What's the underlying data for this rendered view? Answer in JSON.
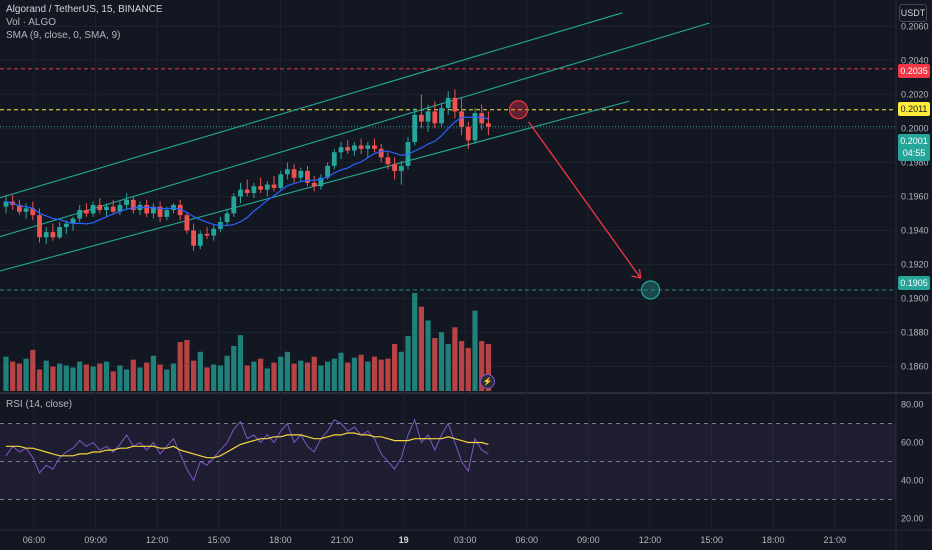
{
  "header": {
    "symbol_line": "Algorand / TetherUS, 15, BINANCE",
    "volume_line": "Vol · ALGO",
    "sma_line": "SMA (9, close, 0, SMA, 9)",
    "rsi_line": "RSI (14, close)",
    "currency": "USDT"
  },
  "price_tags": {
    "target_high": "0.2035",
    "target_high_color": "#f23645",
    "entry": "0.2011",
    "entry_color": "#ffeb3b",
    "last": "0.2001",
    "last_color": "#26a69a",
    "countdown": "04:55",
    "target_low": "0.1905",
    "target_low_color": "#26a69a"
  },
  "chart_data": {
    "type": "candlestick",
    "symbol": "ALGO/USDT",
    "interval": "15",
    "exchange": "BINANCE",
    "x_axis_labels": [
      "06:00",
      "09:00",
      "12:00",
      "15:00",
      "18:00",
      "21:00",
      "19",
      "03:00",
      "06:00",
      "09:00",
      "12:00",
      "15:00",
      "18:00",
      "21:00"
    ],
    "price_ticks": [
      "0.2060",
      "0.2040",
      "0.2020",
      "0.2000",
      "0.1980",
      "0.1960",
      "0.1940",
      "0.1920",
      "0.1900",
      "0.1880",
      "0.1860"
    ],
    "ylim": [
      0.1845,
      0.2072
    ],
    "rsi_ticks": [
      "80.00",
      "60.00",
      "40.00",
      "20.00"
    ],
    "rsi_ylim": [
      15,
      85
    ],
    "rsi_bands": [
      30,
      50,
      70
    ],
    "horizontal_levels": [
      0.2035,
      0.2011,
      0.2001,
      0.1905
    ],
    "colors": {
      "up": "#26a69a",
      "down": "#ef5350",
      "sma": "#2962ff",
      "rsi": "#7e57c2",
      "rsi_ma": "#f5d63d",
      "channel": "#22ab94",
      "arrow": "#f23645"
    },
    "candles": [
      [
        0.1954,
        0.196,
        0.195,
        0.1957
      ],
      [
        0.1957,
        0.1961,
        0.1952,
        0.1955
      ],
      [
        0.1955,
        0.1958,
        0.1949,
        0.1951
      ],
      [
        0.1951,
        0.1956,
        0.1947,
        0.1953
      ],
      [
        0.1953,
        0.1957,
        0.1946,
        0.1949
      ],
      [
        0.1949,
        0.1953,
        0.1933,
        0.1936
      ],
      [
        0.1936,
        0.1942,
        0.1932,
        0.1939
      ],
      [
        0.1939,
        0.1944,
        0.1934,
        0.1936
      ],
      [
        0.1936,
        0.1945,
        0.1935,
        0.1942
      ],
      [
        0.1942,
        0.1946,
        0.1938,
        0.1944
      ],
      [
        0.1944,
        0.1948,
        0.194,
        0.1947
      ],
      [
        0.1947,
        0.1955,
        0.1945,
        0.1952
      ],
      [
        0.1952,
        0.1956,
        0.1948,
        0.195
      ],
      [
        0.195,
        0.1957,
        0.1948,
        0.1955
      ],
      [
        0.1955,
        0.1959,
        0.195,
        0.1952
      ],
      [
        0.1952,
        0.1956,
        0.1948,
        0.1954
      ],
      [
        0.1954,
        0.1958,
        0.195,
        0.1951
      ],
      [
        0.1951,
        0.1957,
        0.1949,
        0.1955
      ],
      [
        0.1955,
        0.1962,
        0.1952,
        0.1958
      ],
      [
        0.1958,
        0.196,
        0.195,
        0.1952
      ],
      [
        0.1952,
        0.1957,
        0.1949,
        0.1955
      ],
      [
        0.1955,
        0.1958,
        0.1948,
        0.195
      ],
      [
        0.195,
        0.1956,
        0.1947,
        0.1954
      ],
      [
        0.1954,
        0.1957,
        0.1945,
        0.1948
      ],
      [
        0.1948,
        0.1954,
        0.1946,
        0.1952
      ],
      [
        0.1952,
        0.1956,
        0.195,
        0.1955
      ],
      [
        0.1955,
        0.1958,
        0.1946,
        0.1949
      ],
      [
        0.1949,
        0.1951,
        0.1938,
        0.194
      ],
      [
        0.194,
        0.1944,
        0.1928,
        0.1931
      ],
      [
        0.1931,
        0.194,
        0.1929,
        0.1938
      ],
      [
        0.1938,
        0.1942,
        0.1935,
        0.1937
      ],
      [
        0.1937,
        0.1943,
        0.1934,
        0.1941
      ],
      [
        0.1941,
        0.1948,
        0.1939,
        0.1945
      ],
      [
        0.1945,
        0.1952,
        0.1943,
        0.195
      ],
      [
        0.195,
        0.1962,
        0.1948,
        0.196
      ],
      [
        0.196,
        0.1968,
        0.1956,
        0.1964
      ],
      [
        0.1964,
        0.197,
        0.196,
        0.1962
      ],
      [
        0.1962,
        0.1968,
        0.1959,
        0.1966
      ],
      [
        0.1966,
        0.1971,
        0.1962,
        0.1964
      ],
      [
        0.1964,
        0.1969,
        0.196,
        0.1967
      ],
      [
        0.1967,
        0.1972,
        0.1963,
        0.1965
      ],
      [
        0.1965,
        0.1975,
        0.1964,
        0.1973
      ],
      [
        0.1973,
        0.198,
        0.197,
        0.1976
      ],
      [
        0.1976,
        0.1979,
        0.1968,
        0.1971
      ],
      [
        0.1971,
        0.1977,
        0.1969,
        0.1975
      ],
      [
        0.1975,
        0.1978,
        0.1966,
        0.1968
      ],
      [
        0.1968,
        0.1972,
        0.1963,
        0.1966
      ],
      [
        0.1966,
        0.1973,
        0.1964,
        0.1971
      ],
      [
        0.1971,
        0.198,
        0.197,
        0.1978
      ],
      [
        0.1978,
        0.1988,
        0.1976,
        0.1986
      ],
      [
        0.1986,
        0.1992,
        0.1982,
        0.1989
      ],
      [
        0.1989,
        0.1993,
        0.1985,
        0.1987
      ],
      [
        0.1987,
        0.1992,
        0.1984,
        0.199
      ],
      [
        0.199,
        0.1994,
        0.1985,
        0.1988
      ],
      [
        0.1988,
        0.1992,
        0.1983,
        0.199
      ],
      [
        0.199,
        0.1994,
        0.1986,
        0.1988
      ],
      [
        0.1988,
        0.1991,
        0.198,
        0.1983
      ],
      [
        0.1983,
        0.1986,
        0.1976,
        0.1979
      ],
      [
        0.1979,
        0.1983,
        0.197,
        0.1975
      ],
      [
        0.1975,
        0.1981,
        0.1967,
        0.1978
      ],
      [
        0.1978,
        0.1995,
        0.1976,
        0.1992
      ],
      [
        0.1992,
        0.2012,
        0.199,
        0.2008
      ],
      [
        0.2008,
        0.202,
        0.2,
        0.2004
      ],
      [
        0.2004,
        0.2014,
        0.1998,
        0.201
      ],
      [
        0.201,
        0.2016,
        0.2,
        0.2003
      ],
      [
        0.2003,
        0.2015,
        0.2001,
        0.2012
      ],
      [
        0.2012,
        0.2022,
        0.2008,
        0.2018
      ],
      [
        0.2018,
        0.2023,
        0.2006,
        0.201
      ],
      [
        0.201,
        0.2018,
        0.1996,
        0.2001
      ],
      [
        0.2001,
        0.2004,
        0.1988,
        0.1993
      ],
      [
        0.1993,
        0.2012,
        0.1991,
        0.2009
      ],
      [
        0.2009,
        0.2014,
        0.1999,
        0.2003
      ],
      [
        0.2003,
        0.201,
        0.1996,
        0.2001
      ]
    ],
    "volumes": [
      0.35,
      0.3,
      0.28,
      0.33,
      0.42,
      0.22,
      0.31,
      0.25,
      0.28,
      0.26,
      0.24,
      0.3,
      0.27,
      0.25,
      0.28,
      0.3,
      0.2,
      0.26,
      0.22,
      0.32,
      0.24,
      0.29,
      0.36,
      0.27,
      0.22,
      0.28,
      0.5,
      0.52,
      0.31,
      0.4,
      0.24,
      0.27,
      0.26,
      0.36,
      0.46,
      0.57,
      0.26,
      0.3,
      0.33,
      0.23,
      0.29,
      0.35,
      0.4,
      0.28,
      0.31,
      0.29,
      0.35,
      0.26,
      0.3,
      0.33,
      0.39,
      0.29,
      0.34,
      0.37,
      0.3,
      0.35,
      0.32,
      0.33,
      0.48,
      0.4,
      0.56,
      1.0,
      0.86,
      0.72,
      0.54,
      0.6,
      0.48,
      0.65,
      0.51,
      0.44,
      0.82,
      0.51,
      0.48
    ],
    "rsi": [
      53,
      58,
      55,
      57,
      52,
      44,
      48,
      46,
      52,
      55,
      57,
      61,
      58,
      60,
      56,
      58,
      55,
      59,
      64,
      58,
      60,
      56,
      60,
      54,
      58,
      62,
      54,
      46,
      40,
      50,
      48,
      52,
      56,
      60,
      67,
      71,
      62,
      64,
      60,
      64,
      60,
      66,
      70,
      60,
      64,
      58,
      55,
      62,
      66,
      72,
      70,
      66,
      68,
      64,
      66,
      62,
      54,
      50,
      46,
      52,
      64,
      72,
      60,
      64,
      56,
      64,
      70,
      60,
      50,
      45,
      62,
      56,
      54
    ],
    "rsi_ma": [
      58,
      58,
      58,
      57,
      57,
      56,
      55,
      54,
      53,
      53,
      53,
      54,
      54,
      55,
      55,
      56,
      56,
      57,
      57,
      58,
      58,
      58,
      58,
      57,
      57,
      58,
      56,
      55,
      54,
      53,
      52,
      52,
      53,
      55,
      57,
      59,
      60,
      61,
      62,
      62,
      63,
      63,
      64,
      64,
      64,
      63,
      62,
      62,
      63,
      64,
      64,
      65,
      65,
      64,
      64,
      63,
      63,
      62,
      61,
      61,
      61,
      62,
      62,
      62,
      62,
      62,
      63,
      62,
      61,
      60,
      60,
      60,
      59
    ]
  }
}
